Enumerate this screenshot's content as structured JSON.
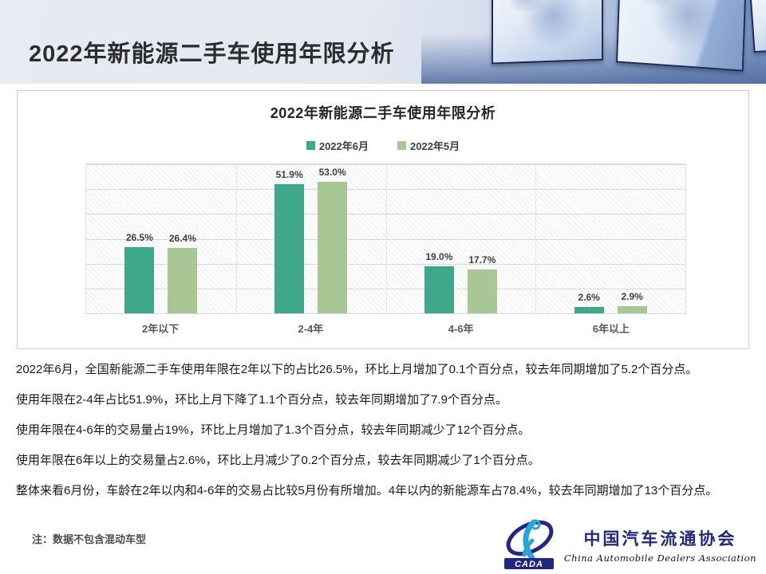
{
  "header": {
    "title": "2022年新能源二手车使用年限分析"
  },
  "chart": {
    "title": "2022年新能源二手车使用年限分析",
    "chart_data": {
      "type": "bar",
      "categories": [
        "2年以下",
        "2-4年",
        "4-6年",
        "6年以上"
      ],
      "series": [
        {
          "name": "2022年6月",
          "color": "#3FA78A",
          "values": [
            26.5,
            51.9,
            19.0,
            2.6
          ],
          "labels": [
            "26.5%",
            "51.9%",
            "19.0%",
            "2.6%"
          ]
        },
        {
          "name": "2022年5月",
          "color": "#A8C795",
          "values": [
            26.4,
            53.0,
            17.7,
            2.9
          ],
          "labels": [
            "26.4%",
            "53.0%",
            "17.7%",
            "2.9%"
          ]
        }
      ],
      "ylim": [
        0,
        60
      ],
      "grid": true,
      "gridline_step": 10,
      "legend_position": "top",
      "plot_background": "diagonal-hatch"
    }
  },
  "analysis": {
    "paragraphs": [
      "2022年6月，全国新能源二手车使用年限在2年以下的占比26.5%，环比上月增加了0.1个百分点，较去年同期增加了5.2个百分点。",
      "使用年限在2-4年占比51.9%，环比上月下降了1.1个百分点，较去年同期增加了7.9个百分点。",
      "使用年限在4-6年的交易量占19%，环比上月增加了1.3个百分点，较去年同期减少了12个百分点。",
      "使用年限在6年以上的交易量占2.6%，环比上月减少了0.2个百分点，较去年同期减少了1个百分点。",
      "整体来看6月份，车龄在2年以内和4-6年的交易占比较5月份有所增加。4年以内的新能源车占78.4%，较去年同期增加了13个百分点。"
    ]
  },
  "footer": {
    "note": "注：数据不包含混动车型",
    "logo": {
      "acronym": "CADA",
      "name_zh": "中国汽车流通协会",
      "name_en": "China Automobile Dealers Association"
    }
  },
  "colors": {
    "series_june": "#3FA78A",
    "series_may": "#A8C795",
    "header_text": "#2d2d2d",
    "logo_navy": "#23277e",
    "logo_blue": "#2ea3d8",
    "gridline": "#d8d8d8"
  }
}
